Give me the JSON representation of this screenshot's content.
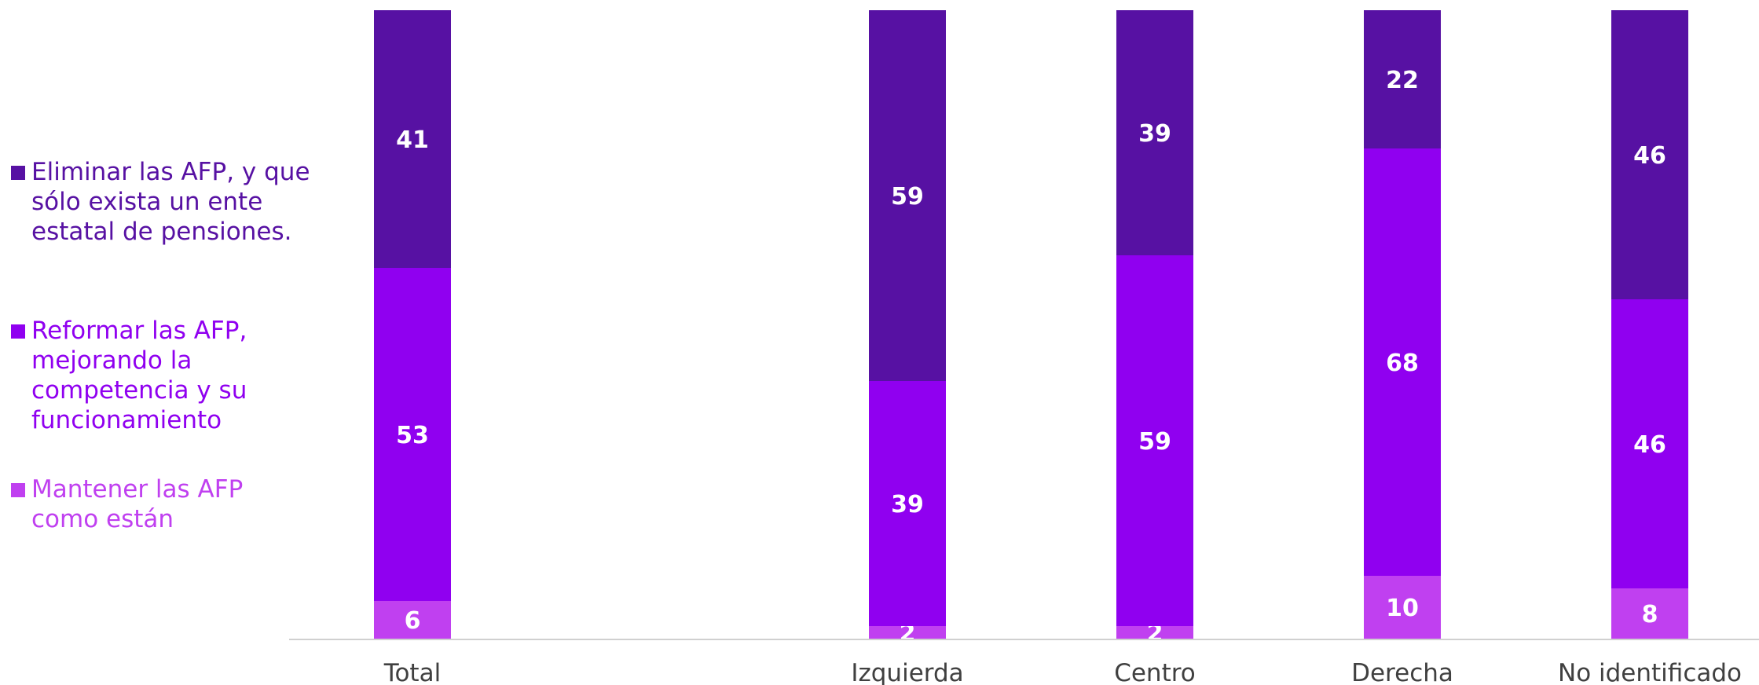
{
  "chart_data": {
    "type": "bar",
    "stacked": true,
    "categories": [
      "Total",
      "Izquierda",
      "Centro",
      "Derecha",
      "No identificado"
    ],
    "series": [
      {
        "name": "Mantener las AFP como están",
        "values": [
          6,
          2,
          2,
          10,
          8
        ],
        "color": "#c040f0"
      },
      {
        "name": "Reformar las AFP, mejorando la competencia y su funcionamiento",
        "values": [
          53,
          39,
          59,
          68,
          46
        ],
        "color": "#9000f0"
      },
      {
        "name": "Eliminar las AFP, y que sólo exista un ente estatal de pensiones.",
        "values": [
          41,
          59,
          39,
          22,
          46
        ],
        "color": "#5711a3"
      }
    ],
    "ylim": [
      0,
      100
    ],
    "legend_position": "left",
    "grid": false
  },
  "legend": {
    "items": [
      {
        "label": "Eliminar las AFP, y que sólo exista un ente estatal de pensiones.",
        "color": "#5711a3"
      },
      {
        "label": "Reformar las AFP, mejorando la competencia y su funcionamiento",
        "color": "#9000f0"
      },
      {
        "label": "Mantener las AFP como están",
        "color": "#c040f0"
      }
    ]
  }
}
